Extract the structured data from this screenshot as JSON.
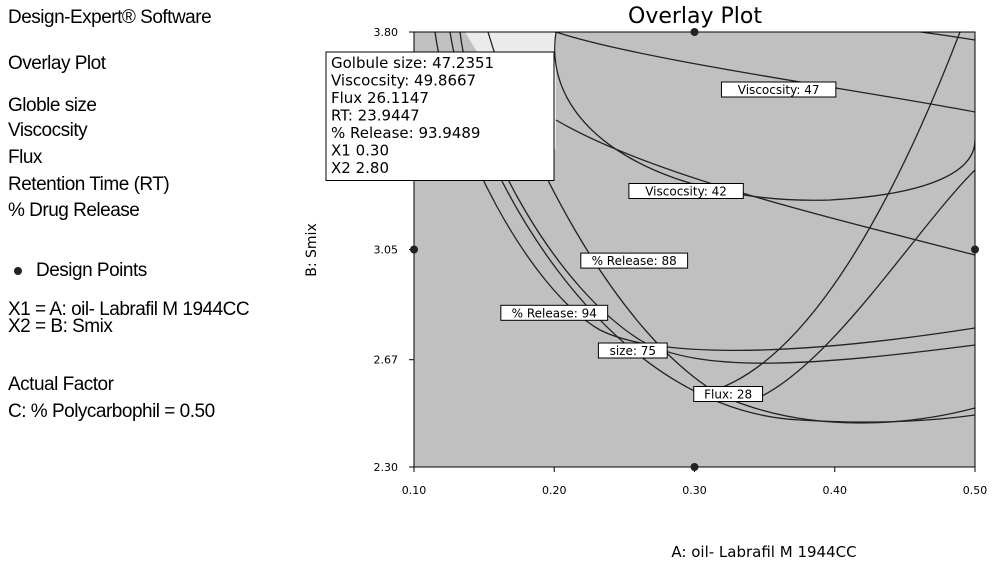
{
  "legend_panel": {
    "software": "Design-Expert® Software",
    "plot_type": "Overlay Plot",
    "responses": [
      "Globle size",
      "Viscocsity",
      "Flux",
      "Retention Time (RT)",
      "% Drug Release"
    ],
    "design_points_label": "Design Points",
    "x1_def": "X1 = A: oil- Labrafil M 1944CC",
    "x2_def": "X2 = B: Smix",
    "actual_factor_header": "Actual Factor",
    "actual_factor_value": "C: % Polycarbophil = 0.50"
  },
  "chart_data": {
    "type": "contour",
    "title": "Overlay Plot",
    "xlabel": "A: oil- Labrafil M 1944CC",
    "ylabel": "B: Smix",
    "xlim": [
      0.1,
      0.5
    ],
    "ylim": [
      2.3,
      3.8
    ],
    "x_ticks": [
      "0.10",
      "0.20",
      "0.30",
      "0.40",
      "0.50"
    ],
    "y_ticks": [
      "2.30",
      "2.67",
      "3.05",
      "3.80"
    ],
    "shaded_color": "#c0c0c0",
    "design_points": [
      {
        "x": 0.3,
        "y": 3.8
      },
      {
        "x": 0.1,
        "y": 3.05
      },
      {
        "x": 0.5,
        "y": 3.05
      },
      {
        "x": 0.3,
        "y": 2.3
      }
    ],
    "contour_labels": [
      {
        "text": "Viscocsity: 47",
        "x": 0.36,
        "y": 3.6
      },
      {
        "text": "Viscocsity: 42",
        "x": 0.294,
        "y": 3.25
      },
      {
        "text": "% Release: 88",
        "x": 0.257,
        "y": 3.01
      },
      {
        "text": "% Release: 94",
        "x": 0.2,
        "y": 2.83
      },
      {
        "text": "size: 75",
        "x": 0.256,
        "y": 2.7
      },
      {
        "text": "Flux: 28",
        "x": 0.324,
        "y": 2.55
      }
    ],
    "flag": {
      "x": 0.3,
      "y": 2.8,
      "lines": [
        "Golbule size: 47.2351",
        "Viscocsity: 49.8667",
        "Flux 26.1147",
        "RT: 23.9447",
        "% Release: 93.9489",
        "X1 0.30",
        "X2 2.80"
      ]
    }
  }
}
